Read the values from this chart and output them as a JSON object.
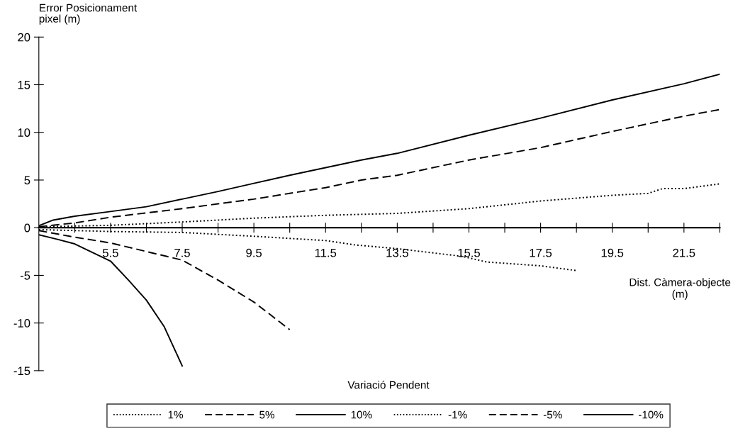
{
  "chart_data": {
    "type": "line",
    "ylabel": "Error Posicionament\npixel (m)",
    "xlabel": "Dist. Càmera-objecte\n(m)",
    "legend_title": "Variació Pendent",
    "xlim": [
      3.5,
      22.5
    ],
    "xticks": [
      {
        "value": 4.5,
        "label": null
      },
      5.5,
      {
        "value": 6.5,
        "label": null
      },
      7.5,
      {
        "value": 8.5,
        "label": null
      },
      9.5,
      {
        "value": 10.5,
        "label": null
      },
      11.5,
      {
        "value": 12.5,
        "label": null
      },
      13.5,
      {
        "value": 14.5,
        "label": null
      },
      15.5,
      {
        "value": 16.5,
        "label": null
      },
      17.5,
      {
        "value": 18.5,
        "label": null
      },
      19.5,
      {
        "value": 20.5,
        "label": null
      },
      21.5,
      {
        "value": 22.5,
        "label": null
      }
    ],
    "ylim": [
      -15,
      20
    ],
    "yticks": [
      -15,
      -10,
      -5,
      0,
      5,
      10,
      15,
      20
    ],
    "legend": "bottom",
    "grid": false,
    "marker": "none",
    "series": [
      {
        "name": "1%",
        "color": "#000000",
        "line_style": "dotted",
        "x": [
          3.5,
          5.5,
          7.5,
          9.5,
          11.5,
          12.3,
          13.5,
          15.3,
          16,
          17.5,
          18.5
        ],
        "values": [
          -0.2,
          -0.4,
          -0.5,
          -0.9,
          -1.35,
          -1.8,
          -2.2,
          -3.0,
          -3.6,
          -4.0,
          -4.5
        ]
      },
      {
        "name": "5%",
        "color": "#000000",
        "line_style": "dashed",
        "x": [
          3.5,
          4.5,
          5.5,
          6.5,
          7.5,
          8.5,
          9.5,
          10.5
        ],
        "values": [
          -0.3,
          -1.0,
          -1.6,
          -2.5,
          -3.4,
          -5.5,
          -7.8,
          -10.7
        ]
      },
      {
        "name": "10%",
        "color": "#000000",
        "line_style": "solid",
        "x": [
          3.5,
          4.0,
          4.5,
          5.5,
          6.0,
          6.5,
          7.0,
          7.5
        ],
        "values": [
          -0.75,
          -1.2,
          -1.7,
          -3.5,
          -5.5,
          -7.6,
          -10.4,
          -14.5
        ]
      },
      {
        "name": "-1%",
        "color": "#000000",
        "line_style": "dotted",
        "x": [
          3.5,
          5.5,
          7.5,
          9.5,
          11.5,
          13.5,
          15.5,
          17.5,
          19.5,
          20.5,
          20.9,
          21.5,
          22.5
        ],
        "values": [
          0.1,
          0.25,
          0.6,
          1.0,
          1.3,
          1.5,
          2.0,
          2.8,
          3.4,
          3.6,
          4.1,
          4.1,
          4.6
        ]
      },
      {
        "name": "-5%",
        "color": "#000000",
        "line_style": "dashed",
        "x": [
          3.5,
          4.5,
          5.5,
          6.5,
          7.5,
          8.5,
          9.5,
          10.5,
          11.5,
          12.5,
          13.5,
          15.5,
          17.5,
          19.5,
          21.5,
          22.5
        ],
        "values": [
          0.1,
          0.5,
          1.1,
          1.55,
          2.0,
          2.5,
          3.0,
          3.6,
          4.2,
          5.0,
          5.5,
          7.1,
          8.4,
          10.1,
          11.7,
          12.4
        ]
      },
      {
        "name": "-10%",
        "color": "#000000",
        "line_style": "solid",
        "x": [
          3.5,
          3.9,
          4.5,
          5.5,
          6.5,
          7.5,
          8.5,
          9.5,
          10.5,
          11.5,
          12.5,
          13.5,
          15.5,
          17.5,
          19.5,
          21.5,
          22.5
        ],
        "values": [
          0.2,
          0.8,
          1.2,
          1.7,
          2.2,
          3.0,
          3.8,
          4.65,
          5.5,
          6.3,
          7.1,
          7.8,
          9.7,
          11.5,
          13.4,
          15.1,
          16.1
        ]
      }
    ]
  }
}
